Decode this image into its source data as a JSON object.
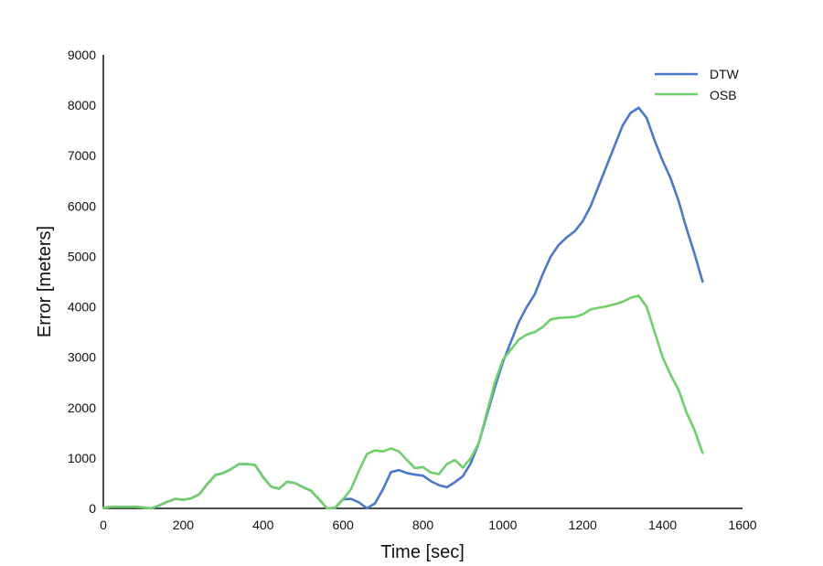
{
  "chart_data": {
    "type": "line",
    "title": "",
    "xlabel": "Time [sec]",
    "ylabel": "Error [meters]",
    "xlim": [
      0,
      1600
    ],
    "ylim": [
      0,
      9000
    ],
    "xticks": [
      0,
      200,
      400,
      600,
      800,
      1000,
      1200,
      1400,
      1600
    ],
    "yticks": [
      0,
      1000,
      2000,
      3000,
      4000,
      5000,
      6000,
      7000,
      8000,
      9000
    ],
    "grid": false,
    "legend_position": "top-right",
    "series": [
      {
        "name": "DTW",
        "color": "#4a78cf",
        "points": [
          [
            0,
            10
          ],
          [
            20,
            30
          ],
          [
            40,
            30
          ],
          [
            60,
            30
          ],
          [
            80,
            30
          ],
          [
            100,
            20
          ],
          [
            120,
            0
          ],
          [
            140,
            60
          ],
          [
            160,
            130
          ],
          [
            180,
            190
          ],
          [
            200,
            170
          ],
          [
            220,
            200
          ],
          [
            240,
            280
          ],
          [
            260,
            480
          ],
          [
            280,
            660
          ],
          [
            300,
            700
          ],
          [
            320,
            780
          ],
          [
            340,
            880
          ],
          [
            360,
            880
          ],
          [
            380,
            860
          ],
          [
            400,
            620
          ],
          [
            420,
            430
          ],
          [
            440,
            390
          ],
          [
            460,
            530
          ],
          [
            480,
            500
          ],
          [
            500,
            420
          ],
          [
            520,
            350
          ],
          [
            540,
            180
          ],
          [
            560,
            0
          ],
          [
            580,
            10
          ],
          [
            600,
            180
          ],
          [
            620,
            190
          ],
          [
            640,
            120
          ],
          [
            660,
            0
          ],
          [
            680,
            100
          ],
          [
            700,
            380
          ],
          [
            720,
            720
          ],
          [
            740,
            760
          ],
          [
            760,
            700
          ],
          [
            780,
            670
          ],
          [
            800,
            650
          ],
          [
            820,
            540
          ],
          [
            840,
            460
          ],
          [
            860,
            420
          ],
          [
            880,
            520
          ],
          [
            900,
            640
          ],
          [
            920,
            900
          ],
          [
            940,
            1300
          ],
          [
            960,
            1850
          ],
          [
            980,
            2400
          ],
          [
            1000,
            2900
          ],
          [
            1020,
            3300
          ],
          [
            1040,
            3700
          ],
          [
            1060,
            4000
          ],
          [
            1080,
            4250
          ],
          [
            1100,
            4650
          ],
          [
            1120,
            5000
          ],
          [
            1140,
            5230
          ],
          [
            1160,
            5380
          ],
          [
            1180,
            5500
          ],
          [
            1200,
            5700
          ],
          [
            1220,
            6000
          ],
          [
            1240,
            6400
          ],
          [
            1260,
            6800
          ],
          [
            1280,
            7200
          ],
          [
            1300,
            7600
          ],
          [
            1320,
            7850
          ],
          [
            1340,
            7950
          ],
          [
            1360,
            7750
          ],
          [
            1380,
            7300
          ],
          [
            1400,
            6900
          ],
          [
            1420,
            6550
          ],
          [
            1440,
            6100
          ],
          [
            1460,
            5550
          ],
          [
            1480,
            5050
          ],
          [
            1500,
            4500
          ]
        ]
      },
      {
        "name": "OSB",
        "color": "#6dd068",
        "points": [
          [
            0,
            10
          ],
          [
            20,
            30
          ],
          [
            40,
            30
          ],
          [
            60,
            30
          ],
          [
            80,
            30
          ],
          [
            100,
            20
          ],
          [
            120,
            0
          ],
          [
            140,
            60
          ],
          [
            160,
            130
          ],
          [
            180,
            190
          ],
          [
            200,
            170
          ],
          [
            220,
            200
          ],
          [
            240,
            280
          ],
          [
            260,
            480
          ],
          [
            280,
            660
          ],
          [
            300,
            700
          ],
          [
            320,
            780
          ],
          [
            340,
            880
          ],
          [
            360,
            880
          ],
          [
            380,
            860
          ],
          [
            400,
            620
          ],
          [
            420,
            430
          ],
          [
            440,
            390
          ],
          [
            460,
            530
          ],
          [
            480,
            500
          ],
          [
            500,
            420
          ],
          [
            520,
            350
          ],
          [
            540,
            180
          ],
          [
            560,
            0
          ],
          [
            580,
            10
          ],
          [
            600,
            180
          ],
          [
            620,
            380
          ],
          [
            640,
            750
          ],
          [
            660,
            1080
          ],
          [
            680,
            1150
          ],
          [
            700,
            1130
          ],
          [
            720,
            1190
          ],
          [
            740,
            1130
          ],
          [
            760,
            960
          ],
          [
            780,
            800
          ],
          [
            800,
            820
          ],
          [
            820,
            710
          ],
          [
            840,
            680
          ],
          [
            860,
            880
          ],
          [
            880,
            960
          ],
          [
            900,
            810
          ],
          [
            920,
            1000
          ],
          [
            940,
            1300
          ],
          [
            960,
            1900
          ],
          [
            980,
            2500
          ],
          [
            1000,
            2950
          ],
          [
            1020,
            3150
          ],
          [
            1040,
            3350
          ],
          [
            1060,
            3450
          ],
          [
            1080,
            3500
          ],
          [
            1100,
            3600
          ],
          [
            1120,
            3750
          ],
          [
            1140,
            3780
          ],
          [
            1160,
            3790
          ],
          [
            1180,
            3800
          ],
          [
            1200,
            3850
          ],
          [
            1220,
            3950
          ],
          [
            1240,
            3980
          ],
          [
            1260,
            4010
          ],
          [
            1280,
            4050
          ],
          [
            1300,
            4100
          ],
          [
            1320,
            4180
          ],
          [
            1340,
            4220
          ],
          [
            1360,
            4000
          ],
          [
            1380,
            3500
          ],
          [
            1400,
            3000
          ],
          [
            1420,
            2650
          ],
          [
            1440,
            2350
          ],
          [
            1460,
            1900
          ],
          [
            1480,
            1550
          ],
          [
            1500,
            1100
          ]
        ]
      }
    ]
  }
}
